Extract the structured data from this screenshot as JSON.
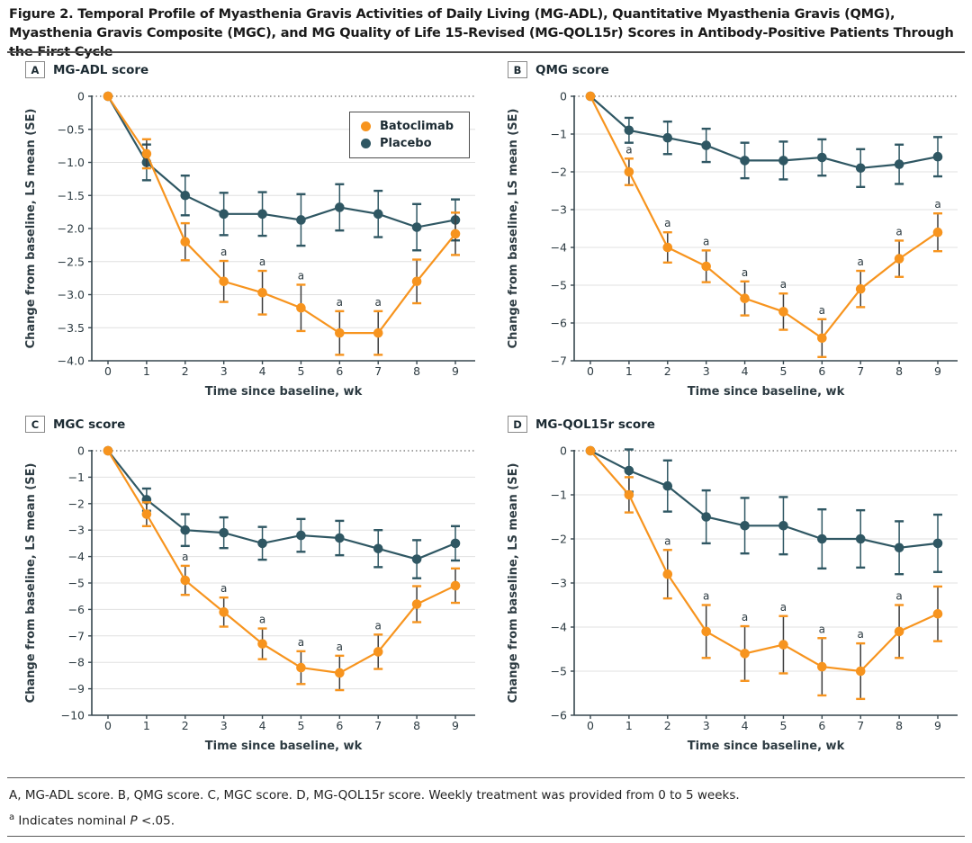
{
  "figure_title": "Figure 2. Temporal Profile of Myasthenia Gravis Activities of Daily Living (MG-ADL), Quantitative Myasthenia Gravis (QMG), Myasthenia Gravis Composite (MGC), and MG Quality of Life 15-Revised (MG-QOL15r) Scores in Antibody-Positive Patients Through the First Cycle",
  "legend": {
    "items": [
      {
        "label": "Batoclimab",
        "color": "#F7941E"
      },
      {
        "label": "Placebo",
        "color": "#2F5763"
      }
    ]
  },
  "footnote_caption": "A, MG-ADL score. B, QMG score. C, MGC score. D, MG-QOL15r score. Weekly treatment was provided from 0 to 5 weeks.",
  "footnote_sig": {
    "marker": "a",
    "text1": " Indicates nominal ",
    "p": "P",
    "text2": " <.05."
  },
  "chart_data": [
    {
      "type": "line",
      "panel": "A",
      "title": "MG-ADL score",
      "xlabel": "Time since baseline, wk",
      "ylabel": "Change from baseline, LS mean (SE)",
      "x": [
        0,
        1,
        2,
        3,
        4,
        5,
        6,
        7,
        8,
        9
      ],
      "ylim": [
        -4.0,
        0
      ],
      "yticks": [
        0,
        -0.5,
        -1,
        -1.5,
        -2,
        -2.5,
        -3,
        -3.5,
        -4
      ],
      "ytick_labels": [
        "0",
        "−0.5",
        "−1.0",
        "−1.5",
        "−2.0",
        "−2.5",
        "−3.0",
        "−3.5",
        "−4.0"
      ],
      "sig_marker": "a",
      "series": [
        {
          "name": "Batoclimab",
          "color": "#F7941E",
          "stem_color": "#3d3d3d",
          "values": [
            0,
            -0.87,
            -2.2,
            -2.8,
            -2.97,
            -3.2,
            -3.58,
            -3.58,
            -2.8,
            -2.08
          ],
          "se": [
            0,
            0.22,
            0.28,
            0.31,
            0.33,
            0.35,
            0.33,
            0.33,
            0.33,
            0.32
          ],
          "sig_weeks": [
            3,
            4,
            5,
            6,
            7
          ]
        },
        {
          "name": "Placebo",
          "color": "#2F5763",
          "stem_color": "#2F5763",
          "values": [
            0,
            -1.0,
            -1.5,
            -1.78,
            -1.78,
            -1.87,
            -1.68,
            -1.78,
            -1.98,
            -1.87
          ],
          "se": [
            0,
            0.27,
            0.3,
            0.32,
            0.33,
            0.39,
            0.35,
            0.35,
            0.35,
            0.31
          ],
          "sig_weeks": []
        }
      ]
    },
    {
      "type": "line",
      "panel": "B",
      "title": "QMG score",
      "xlabel": "Time since baseline, wk",
      "ylabel": "Change from baseline, LS mean (SE)",
      "x": [
        0,
        1,
        2,
        3,
        4,
        5,
        6,
        7,
        8,
        9
      ],
      "ylim": [
        -7,
        0
      ],
      "yticks": [
        0,
        -1,
        -2,
        -3,
        -4,
        -5,
        -6,
        -7
      ],
      "ytick_labels": [
        "0",
        "−1",
        "−2",
        "−3",
        "−4",
        "−5",
        "−6",
        "−7"
      ],
      "sig_marker": "a",
      "series": [
        {
          "name": "Batoclimab",
          "color": "#F7941E",
          "stem_color": "#3d3d3d",
          "values": [
            0,
            -2.0,
            -4.0,
            -4.5,
            -5.35,
            -5.7,
            -6.4,
            -5.1,
            -4.3,
            -3.6
          ],
          "se": [
            0,
            0.35,
            0.4,
            0.42,
            0.45,
            0.48,
            0.5,
            0.48,
            0.48,
            0.5
          ],
          "sig_weeks": [
            1,
            2,
            3,
            4,
            5,
            6,
            7,
            8,
            9
          ]
        },
        {
          "name": "Placebo",
          "color": "#2F5763",
          "stem_color": "#2F5763",
          "values": [
            0,
            -0.9,
            -1.1,
            -1.3,
            -1.7,
            -1.7,
            -1.62,
            -1.9,
            -1.8,
            -1.6
          ],
          "se": [
            0,
            0.33,
            0.43,
            0.44,
            0.47,
            0.5,
            0.48,
            0.5,
            0.52,
            0.52
          ],
          "sig_weeks": []
        }
      ]
    },
    {
      "type": "line",
      "panel": "C",
      "title": "MGC score",
      "xlabel": "Time since baseline, wk",
      "ylabel": "Change from baseline, LS mean (SE)",
      "x": [
        0,
        1,
        2,
        3,
        4,
        5,
        6,
        7,
        8,
        9
      ],
      "ylim": [
        -10,
        0
      ],
      "yticks": [
        0,
        -1,
        -2,
        -3,
        -4,
        -5,
        -6,
        -7,
        -8,
        -9,
        -10
      ],
      "ytick_labels": [
        "0",
        "−1",
        "−2",
        "−3",
        "−4",
        "−5",
        "−6",
        "−7",
        "−8",
        "−9",
        "−10"
      ],
      "sig_marker": "a",
      "series": [
        {
          "name": "Batoclimab",
          "color": "#F7941E",
          "stem_color": "#3d3d3d",
          "values": [
            0,
            -2.4,
            -4.9,
            -6.1,
            -7.3,
            -8.2,
            -8.4,
            -7.6,
            -5.8,
            -5.1
          ],
          "se": [
            0,
            0.45,
            0.55,
            0.55,
            0.58,
            0.62,
            0.65,
            0.65,
            0.68,
            0.65
          ],
          "sig_weeks": [
            2,
            3,
            4,
            5,
            6,
            7
          ]
        },
        {
          "name": "Placebo",
          "color": "#2F5763",
          "stem_color": "#2F5763",
          "values": [
            0,
            -1.85,
            -3.0,
            -3.1,
            -3.5,
            -3.2,
            -3.3,
            -3.7,
            -4.1,
            -3.5
          ],
          "se": [
            0,
            0.42,
            0.6,
            0.58,
            0.62,
            0.62,
            0.65,
            0.7,
            0.72,
            0.65
          ],
          "sig_weeks": []
        }
      ]
    },
    {
      "type": "line",
      "panel": "D",
      "title": "MG-QOL15r score",
      "xlabel": "Time since baseline, wk",
      "ylabel": "Change from baseline, LS mean (SE)",
      "x": [
        0,
        1,
        2,
        3,
        4,
        5,
        6,
        7,
        8,
        9
      ],
      "ylim": [
        -6,
        0
      ],
      "yticks": [
        0,
        -1,
        -2,
        -3,
        -4,
        -5,
        -6
      ],
      "ytick_labels": [
        "0",
        "−1",
        "−2",
        "−3",
        "−4",
        "−5",
        "−6"
      ],
      "sig_marker": "a",
      "series": [
        {
          "name": "Batoclimab",
          "color": "#F7941E",
          "stem_color": "#3d3d3d",
          "values": [
            0,
            -1.0,
            -2.8,
            -4.1,
            -4.6,
            -4.4,
            -4.9,
            -5.0,
            -4.1,
            -3.7
          ],
          "se": [
            0,
            0.4,
            0.55,
            0.6,
            0.62,
            0.65,
            0.65,
            0.63,
            0.6,
            0.62
          ],
          "sig_weeks": [
            2,
            3,
            4,
            5,
            6,
            7,
            8
          ]
        },
        {
          "name": "Placebo",
          "color": "#2F5763",
          "stem_color": "#2F5763",
          "values": [
            0,
            -0.45,
            -0.8,
            -1.5,
            -1.7,
            -1.7,
            -2.0,
            -2.0,
            -2.2,
            -2.1
          ],
          "se": [
            0,
            0.48,
            0.58,
            0.6,
            0.63,
            0.65,
            0.67,
            0.65,
            0.6,
            0.65
          ],
          "sig_weeks": []
        }
      ]
    }
  ]
}
